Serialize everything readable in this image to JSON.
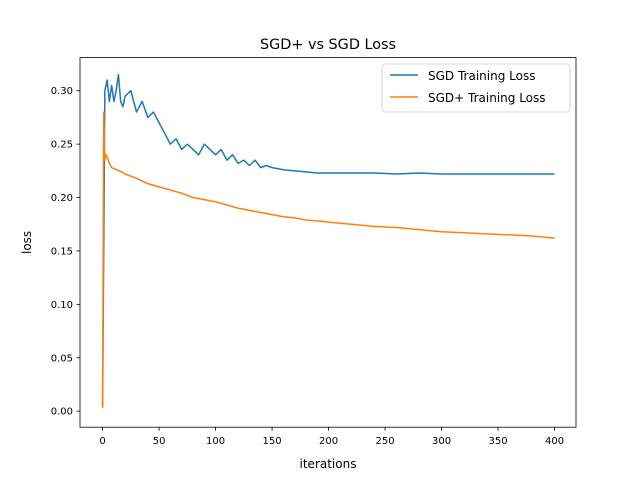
{
  "chart_data": {
    "type": "line",
    "title": "SGD+ vs SGD Loss",
    "xlabel": "iterations",
    "ylabel": "loss",
    "xlim": [
      -20,
      419
    ],
    "ylim": [
      -0.015,
      0.331
    ],
    "xticks": [
      0,
      50,
      100,
      150,
      200,
      250,
      300,
      350,
      400
    ],
    "yticks": [
      0.0,
      0.05,
      0.1,
      0.15,
      0.2,
      0.25,
      0.3
    ],
    "ytick_labels": [
      "0.00",
      "0.05",
      "0.10",
      "0.15",
      "0.20",
      "0.25",
      "0.30"
    ],
    "grid": false,
    "legend_position": "top-right",
    "series": [
      {
        "name": "SGD Training Loss",
        "color": "#1f77b4",
        "x": [
          0,
          2,
          4,
          6,
          8,
          10,
          12,
          14,
          16,
          18,
          20,
          25,
          30,
          35,
          40,
          45,
          50,
          55,
          60,
          65,
          70,
          75,
          80,
          85,
          90,
          95,
          100,
          105,
          110,
          115,
          120,
          125,
          130,
          135,
          140,
          145,
          150,
          160,
          170,
          180,
          190,
          200,
          220,
          240,
          260,
          280,
          300,
          320,
          340,
          360,
          380,
          400
        ],
        "y": [
          0.005,
          0.3,
          0.31,
          0.29,
          0.305,
          0.29,
          0.3,
          0.315,
          0.29,
          0.285,
          0.295,
          0.3,
          0.28,
          0.29,
          0.275,
          0.28,
          0.27,
          0.26,
          0.25,
          0.255,
          0.245,
          0.25,
          0.245,
          0.24,
          0.25,
          0.245,
          0.24,
          0.245,
          0.235,
          0.24,
          0.232,
          0.235,
          0.23,
          0.235,
          0.228,
          0.23,
          0.228,
          0.226,
          0.225,
          0.224,
          0.223,
          0.223,
          0.223,
          0.223,
          0.222,
          0.223,
          0.222,
          0.222,
          0.222,
          0.222,
          0.222,
          0.222
        ]
      },
      {
        "name": "SGD+ Training Loss",
        "color": "#ff7f0e",
        "x": [
          0,
          1,
          2,
          3,
          4,
          6,
          8,
          10,
          15,
          20,
          25,
          30,
          40,
          50,
          60,
          70,
          80,
          90,
          100,
          110,
          120,
          130,
          140,
          150,
          160,
          170,
          180,
          190,
          200,
          220,
          240,
          260,
          280,
          300,
          320,
          340,
          360,
          380,
          400
        ],
        "y": [
          0.003,
          0.28,
          0.235,
          0.24,
          0.238,
          0.232,
          0.228,
          0.227,
          0.225,
          0.222,
          0.22,
          0.218,
          0.213,
          0.21,
          0.207,
          0.204,
          0.2,
          0.198,
          0.196,
          0.193,
          0.19,
          0.188,
          0.186,
          0.184,
          0.182,
          0.181,
          0.179,
          0.178,
          0.177,
          0.175,
          0.173,
          0.172,
          0.17,
          0.168,
          0.167,
          0.166,
          0.165,
          0.164,
          0.162
        ]
      }
    ]
  }
}
